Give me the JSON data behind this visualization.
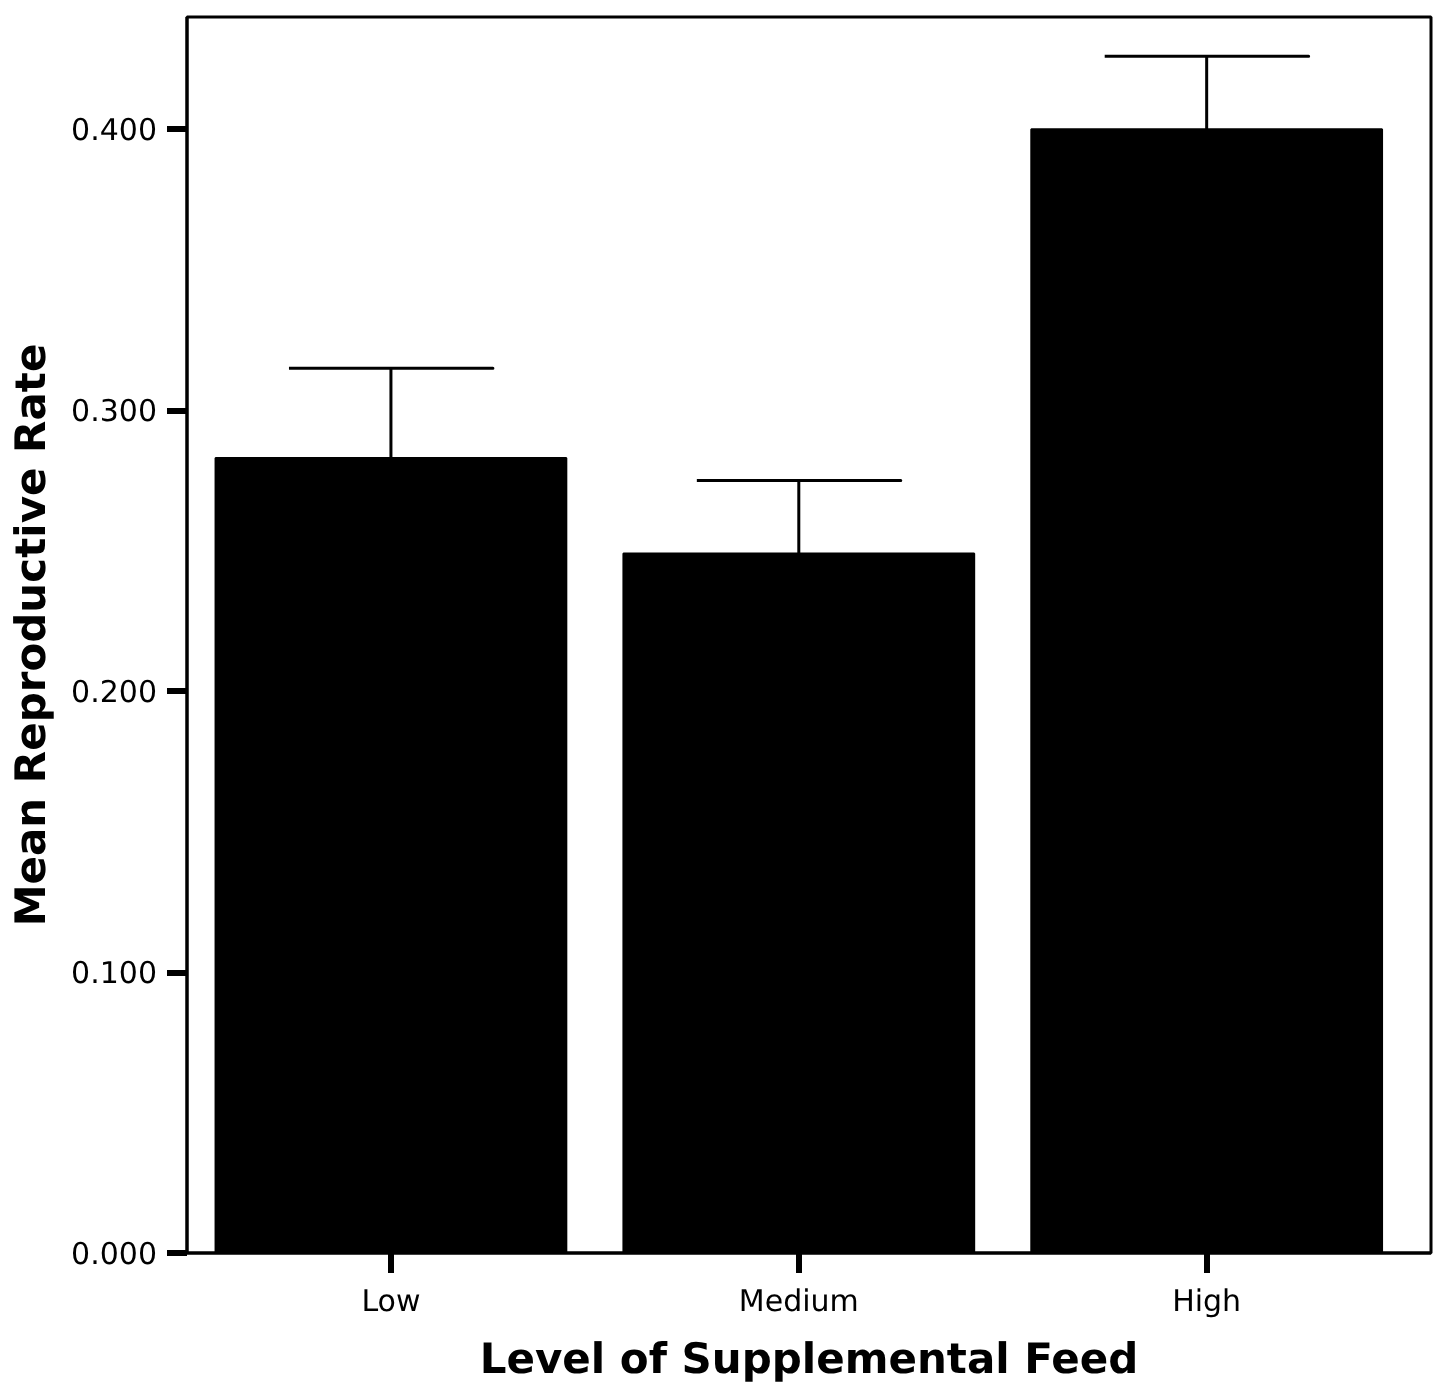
{
  "chart_data": {
    "type": "bar",
    "xlabel": "Level of Supplemental Feed",
    "ylabel": "Mean Reproductive Rate",
    "categories": [
      "Low",
      "Medium",
      "High"
    ],
    "values": [
      0.283,
      0.249,
      0.4
    ],
    "errors": [
      0.032,
      0.026,
      0.026
    ],
    "color": "#000000",
    "ylim": [
      0,
      0.44
    ],
    "yticks": [
      {
        "value": 0,
        "label": "0.000"
      },
      {
        "value": 0.1,
        "label": "0.100"
      },
      {
        "value": 0.2,
        "label": "0.200"
      },
      {
        "value": 0.3,
        "label": "0.300"
      },
      {
        "value": 0.4,
        "label": "0.400"
      }
    ],
    "grid": false
  }
}
